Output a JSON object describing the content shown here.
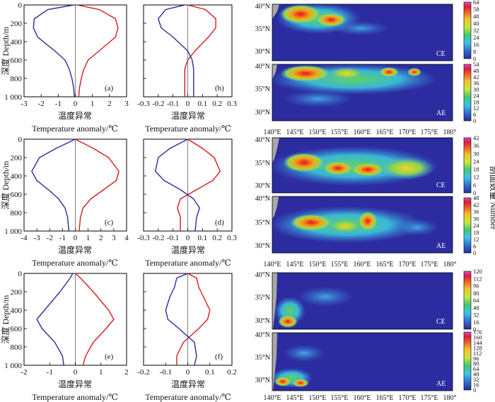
{
  "figure": {
    "ylabel": "深度 Depth/m",
    "xlabel_cn": "温度异常",
    "xlabel_en": "Temperature anomaly/℃",
    "colorbar_label": "剖面数量 Number",
    "colors": {
      "ce": "#d7191c",
      "ae": "#2b2b9b",
      "map_background": "#2c2ca0",
      "land": "#a8a8a8"
    }
  },
  "chart_data": [
    {
      "type": "line",
      "panel": "a",
      "xlim": [
        -3,
        3
      ],
      "ylim": [
        1000,
        0
      ],
      "xticks": [
        "-3",
        "-2",
        "-1",
        "0",
        "1",
        "2",
        "3"
      ],
      "yticks": [
        "0",
        "200",
        "400",
        "600",
        "800",
        "1 000"
      ],
      "series": [
        {
          "name": "CE",
          "color": "#d7191c",
          "x": [
            0.1,
            1.4,
            2.35,
            2.5,
            2.35,
            1.4,
            0.75,
            0.5,
            0.35,
            0.25,
            0.2
          ],
          "y": [
            0,
            50,
            150,
            250,
            350,
            500,
            600,
            700,
            800,
            900,
            1000
          ]
        },
        {
          "name": "AE",
          "color": "#2b2b9b",
          "x": [
            -0.1,
            -1.6,
            -2.4,
            -2.45,
            -2.2,
            -1.2,
            -0.6,
            -0.35,
            -0.2,
            -0.1,
            -0.05
          ],
          "y": [
            0,
            50,
            150,
            250,
            350,
            500,
            600,
            700,
            800,
            900,
            1000
          ]
        }
      ]
    },
    {
      "type": "line",
      "panel": "b",
      "xlim": [
        -0.3,
        0.3
      ],
      "ylim": [
        1000,
        0
      ],
      "xticks": [
        "-0.3",
        "-0.2",
        "-0.1",
        "0",
        "0.1",
        "0.2",
        "0.3"
      ],
      "yticks": [
        "0",
        "200",
        "400",
        "600",
        "800",
        "1 000"
      ],
      "series": [
        {
          "name": "CE",
          "color": "#d7191c",
          "x": [
            0.0,
            0.12,
            0.19,
            0.19,
            0.14,
            0.05,
            0.0,
            -0.02,
            -0.02,
            -0.02,
            -0.02
          ],
          "y": [
            0,
            50,
            150,
            250,
            350,
            500,
            600,
            700,
            800,
            900,
            1000
          ]
        },
        {
          "name": "AE",
          "color": "#2b2b9b",
          "x": [
            -0.02,
            -0.15,
            -0.2,
            -0.18,
            -0.1,
            0.0,
            0.03,
            0.04,
            0.04,
            0.04,
            0.04
          ],
          "y": [
            0,
            50,
            150,
            250,
            350,
            500,
            600,
            700,
            800,
            900,
            1000
          ]
        }
      ]
    },
    {
      "type": "line",
      "panel": "c",
      "xlim": [
        -4,
        4
      ],
      "ylim": [
        1000,
        0
      ],
      "xticks": [
        "-4",
        "-3",
        "-2",
        "-1",
        "0",
        "1",
        "2",
        "3",
        "4"
      ],
      "yticks": [
        "0",
        "200",
        "400",
        "600",
        "800",
        "1 000"
      ],
      "series": [
        {
          "name": "CE",
          "color": "#d7191c",
          "x": [
            0.0,
            1.4,
            2.6,
            3.4,
            3.2,
            2.2,
            1.2,
            0.6,
            0.4,
            0.3
          ],
          "y": [
            0,
            100,
            200,
            350,
            450,
            550,
            650,
            750,
            850,
            1000
          ]
        },
        {
          "name": "AE",
          "color": "#2b2b9b",
          "x": [
            0.0,
            -1.5,
            -2.8,
            -3.4,
            -3.0,
            -2.1,
            -1.3,
            -0.8,
            -0.6,
            -0.5
          ],
          "y": [
            0,
            100,
            200,
            350,
            450,
            550,
            650,
            750,
            850,
            1000
          ]
        }
      ]
    },
    {
      "type": "line",
      "panel": "d",
      "xlim": [
        -0.3,
        0.3
      ],
      "ylim": [
        1000,
        0
      ],
      "xticks": [
        "-0.3",
        "-0.2",
        "-0.1",
        "0",
        "0.1",
        "0.2",
        "0.3"
      ],
      "yticks": [
        "0",
        "200",
        "400",
        "600",
        "800",
        "1 000"
      ],
      "series": [
        {
          "name": "CE",
          "color": "#d7191c",
          "x": [
            0.0,
            0.1,
            0.18,
            0.22,
            0.17,
            0.06,
            -0.05,
            -0.07,
            -0.05,
            -0.05
          ],
          "y": [
            0,
            100,
            200,
            350,
            450,
            550,
            650,
            750,
            850,
            1000
          ]
        },
        {
          "name": "AE",
          "color": "#2b2b9b",
          "x": [
            0.0,
            -0.12,
            -0.2,
            -0.22,
            -0.16,
            -0.05,
            0.04,
            0.08,
            0.06,
            0.05
          ],
          "y": [
            0,
            100,
            200,
            350,
            450,
            550,
            650,
            750,
            850,
            1000
          ]
        }
      ]
    },
    {
      "type": "line",
      "panel": "e",
      "xlim": [
        -2,
        2
      ],
      "ylim": [
        1000,
        0
      ],
      "xticks": [
        "-2",
        "-1",
        "0",
        "1",
        "2"
      ],
      "yticks": [
        "0",
        "200",
        "400",
        "600",
        "800",
        "1 000"
      ],
      "series": [
        {
          "name": "CE",
          "color": "#d7191c",
          "x": [
            0.0,
            0.2,
            0.7,
            1.3,
            1.5,
            1.2,
            0.7,
            0.4,
            0.3
          ],
          "y": [
            0,
            50,
            200,
            400,
            500,
            600,
            750,
            900,
            1000
          ]
        },
        {
          "name": "AE",
          "color": "#2b2b9b",
          "x": [
            -0.1,
            -0.2,
            -0.6,
            -1.2,
            -1.5,
            -1.3,
            -0.8,
            -0.5,
            -0.45
          ],
          "y": [
            0,
            50,
            200,
            400,
            500,
            600,
            750,
            900,
            1000
          ]
        }
      ]
    },
    {
      "type": "line",
      "panel": "f",
      "xlim": [
        -0.2,
        0.2
      ],
      "ylim": [
        1000,
        0
      ],
      "xticks": [
        "-0.2",
        "-0.1",
        "0",
        "0.1",
        "0.2"
      ],
      "yticks": [
        "0",
        "200",
        "400",
        "600",
        "800",
        "1 000"
      ],
      "series": [
        {
          "name": "CE",
          "color": "#d7191c",
          "x": [
            0.0,
            0.04,
            0.05,
            0.07,
            0.1,
            0.09,
            0.05,
            -0.02,
            -0.05,
            -0.05
          ],
          "y": [
            0,
            50,
            150,
            250,
            400,
            500,
            600,
            750,
            900,
            1000
          ]
        },
        {
          "name": "AE",
          "color": "#2b2b9b",
          "x": [
            0.0,
            -0.05,
            -0.06,
            -0.08,
            -0.1,
            -0.09,
            -0.04,
            0.03,
            0.04,
            0.03
          ],
          "y": [
            0,
            50,
            150,
            250,
            400,
            500,
            600,
            750,
            900,
            1000
          ]
        }
      ]
    }
  ],
  "maps": [
    {
      "tag": "CE",
      "lat_ticks": [
        "40°N",
        "35°N",
        "30°N"
      ],
      "colorbar_ticks": [
        "64",
        "58",
        "48",
        "40",
        "32",
        "24",
        "16",
        "8",
        "0"
      ]
    },
    {
      "tag": "AE",
      "lat_ticks": [
        "40°N",
        "35°N",
        "30°N"
      ],
      "colorbar_ticks": [
        "54",
        "48",
        "42",
        "36",
        "30",
        "24",
        "18",
        "12",
        "6",
        "0"
      ]
    },
    {
      "tag": "CE",
      "lat_ticks": [
        "40°N",
        "35°N",
        "30°N"
      ],
      "colorbar_ticks": [
        "42",
        "36",
        "30",
        "24",
        "18",
        "12",
        "6",
        "0"
      ]
    },
    {
      "tag": "AE",
      "lat_ticks": [
        "40°N",
        "35°N",
        "30°N"
      ],
      "colorbar_ticks": [
        "48",
        "42",
        "36",
        "30",
        "24",
        "18",
        "12",
        "6",
        "0"
      ]
    },
    {
      "tag": "CE",
      "lat_ticks": [
        "40°N",
        "35°N",
        "30°N"
      ],
      "colorbar_ticks": [
        "120",
        "112",
        "96",
        "80",
        "64",
        "48",
        "32",
        "16",
        "0"
      ]
    },
    {
      "tag": "AE",
      "lat_ticks": [
        "40°N",
        "35°N",
        "30°N"
      ],
      "colorbar_ticks": [
        "176",
        "160",
        "144",
        "128",
        "112",
        "96",
        "80",
        "64",
        "48",
        "32",
        "16",
        "0"
      ]
    }
  ],
  "lon_ticks": [
    "140°E",
    "145°E",
    "150°E",
    "155°E",
    "160°E",
    "165°E",
    "170°E",
    "175°E",
    "180°"
  ]
}
